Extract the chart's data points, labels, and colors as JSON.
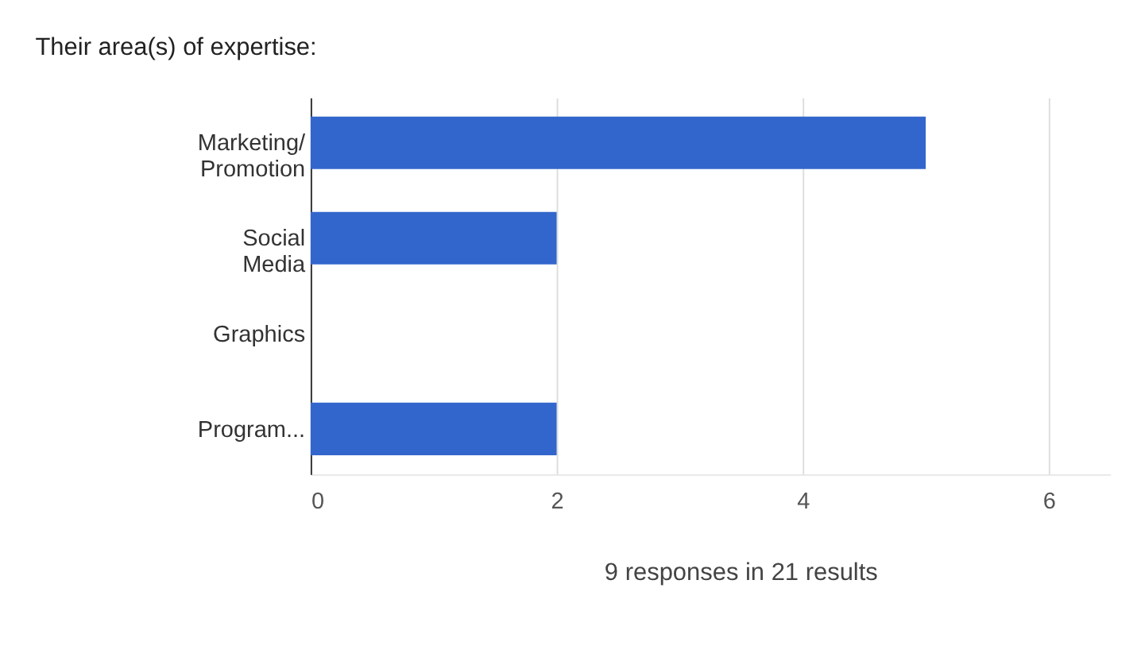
{
  "chart_data": {
    "type": "bar",
    "orientation": "horizontal",
    "title": "Their area(s) of expertise:",
    "categories": [
      "Marketing/\nPromotion",
      "Social\nMedia",
      "Graphics",
      "Program..."
    ],
    "values": [
      5,
      2,
      0,
      2
    ],
    "color": "#3366cc",
    "xlim": [
      0,
      6.5
    ],
    "xticks": [
      0,
      2,
      4,
      6
    ],
    "grid": "x",
    "annotations": [
      "9 responses in 21 results"
    ]
  }
}
